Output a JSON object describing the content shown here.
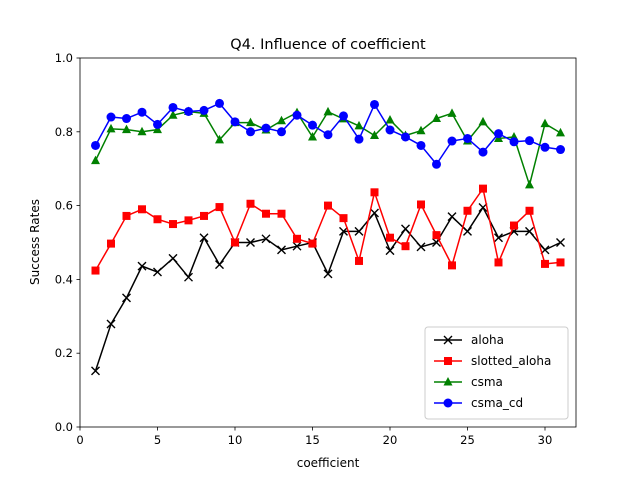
{
  "chart_data": {
    "type": "line",
    "title": "Q4. Influence of coefficient",
    "xlabel": "coefficient",
    "ylabel": "Success Rates",
    "xlim": [
      0.0,
      32.0
    ],
    "ylim": [
      0.0,
      1.0
    ],
    "xticks": [
      0,
      5,
      10,
      15,
      20,
      25,
      30
    ],
    "yticks": [
      0.0,
      0.2,
      0.4,
      0.6,
      0.8,
      1.0
    ],
    "xtick_labels": [
      "0",
      "5",
      "10",
      "15",
      "20",
      "25",
      "30"
    ],
    "ytick_labels": [
      "0.0",
      "0.2",
      "0.4",
      "0.6",
      "0.8",
      "1.0"
    ],
    "grid": false,
    "legend_position": "lower-right",
    "x": [
      1,
      2,
      3,
      4,
      5,
      6,
      7,
      8,
      9,
      10,
      11,
      12,
      13,
      14,
      15,
      16,
      17,
      18,
      19,
      20,
      21,
      22,
      23,
      24,
      25,
      26,
      27,
      28,
      29,
      30,
      31
    ],
    "series": [
      {
        "name": "aloha",
        "color": "#000000",
        "marker": "x",
        "values": [
          0.152,
          0.279,
          0.35,
          0.436,
          0.42,
          0.457,
          0.406,
          0.513,
          0.44,
          0.5,
          0.5,
          0.51,
          0.48,
          0.49,
          0.5,
          0.415,
          0.53,
          0.53,
          0.58,
          0.478,
          0.537,
          0.488,
          0.5,
          0.57,
          0.53,
          0.595,
          0.513,
          0.53,
          0.53,
          0.48,
          0.5
        ]
      },
      {
        "name": "slotted_aloha",
        "color": "#ff0000",
        "marker": "s",
        "values": [
          0.424,
          0.497,
          0.572,
          0.59,
          0.563,
          0.55,
          0.56,
          0.572,
          0.596,
          0.5,
          0.605,
          0.578,
          0.578,
          0.51,
          0.497,
          0.6,
          0.566,
          0.45,
          0.636,
          0.513,
          0.49,
          0.603,
          0.52,
          0.438,
          0.586,
          0.646,
          0.446,
          0.546,
          0.586,
          0.442,
          0.446
        ]
      },
      {
        "name": "csma",
        "color": "#008000",
        "marker": "^",
        "values": [
          0.722,
          0.808,
          0.806,
          0.8,
          0.806,
          0.845,
          0.855,
          0.85,
          0.778,
          0.825,
          0.825,
          0.805,
          0.83,
          0.852,
          0.786,
          0.854,
          0.835,
          0.816,
          0.79,
          0.832,
          0.79,
          0.803,
          0.836,
          0.85,
          0.775,
          0.827,
          0.782,
          0.786,
          0.656,
          0.822,
          0.797
        ]
      },
      {
        "name": "csma_cd",
        "color": "#0000ff",
        "marker": "o",
        "values": [
          0.763,
          0.84,
          0.836,
          0.853,
          0.82,
          0.866,
          0.855,
          0.858,
          0.877,
          0.827,
          0.8,
          0.81,
          0.8,
          0.845,
          0.818,
          0.792,
          0.843,
          0.78,
          0.874,
          0.805,
          0.786,
          0.763,
          0.712,
          0.775,
          0.782,
          0.745,
          0.795,
          0.773,
          0.776,
          0.758,
          0.752
        ]
      }
    ]
  }
}
